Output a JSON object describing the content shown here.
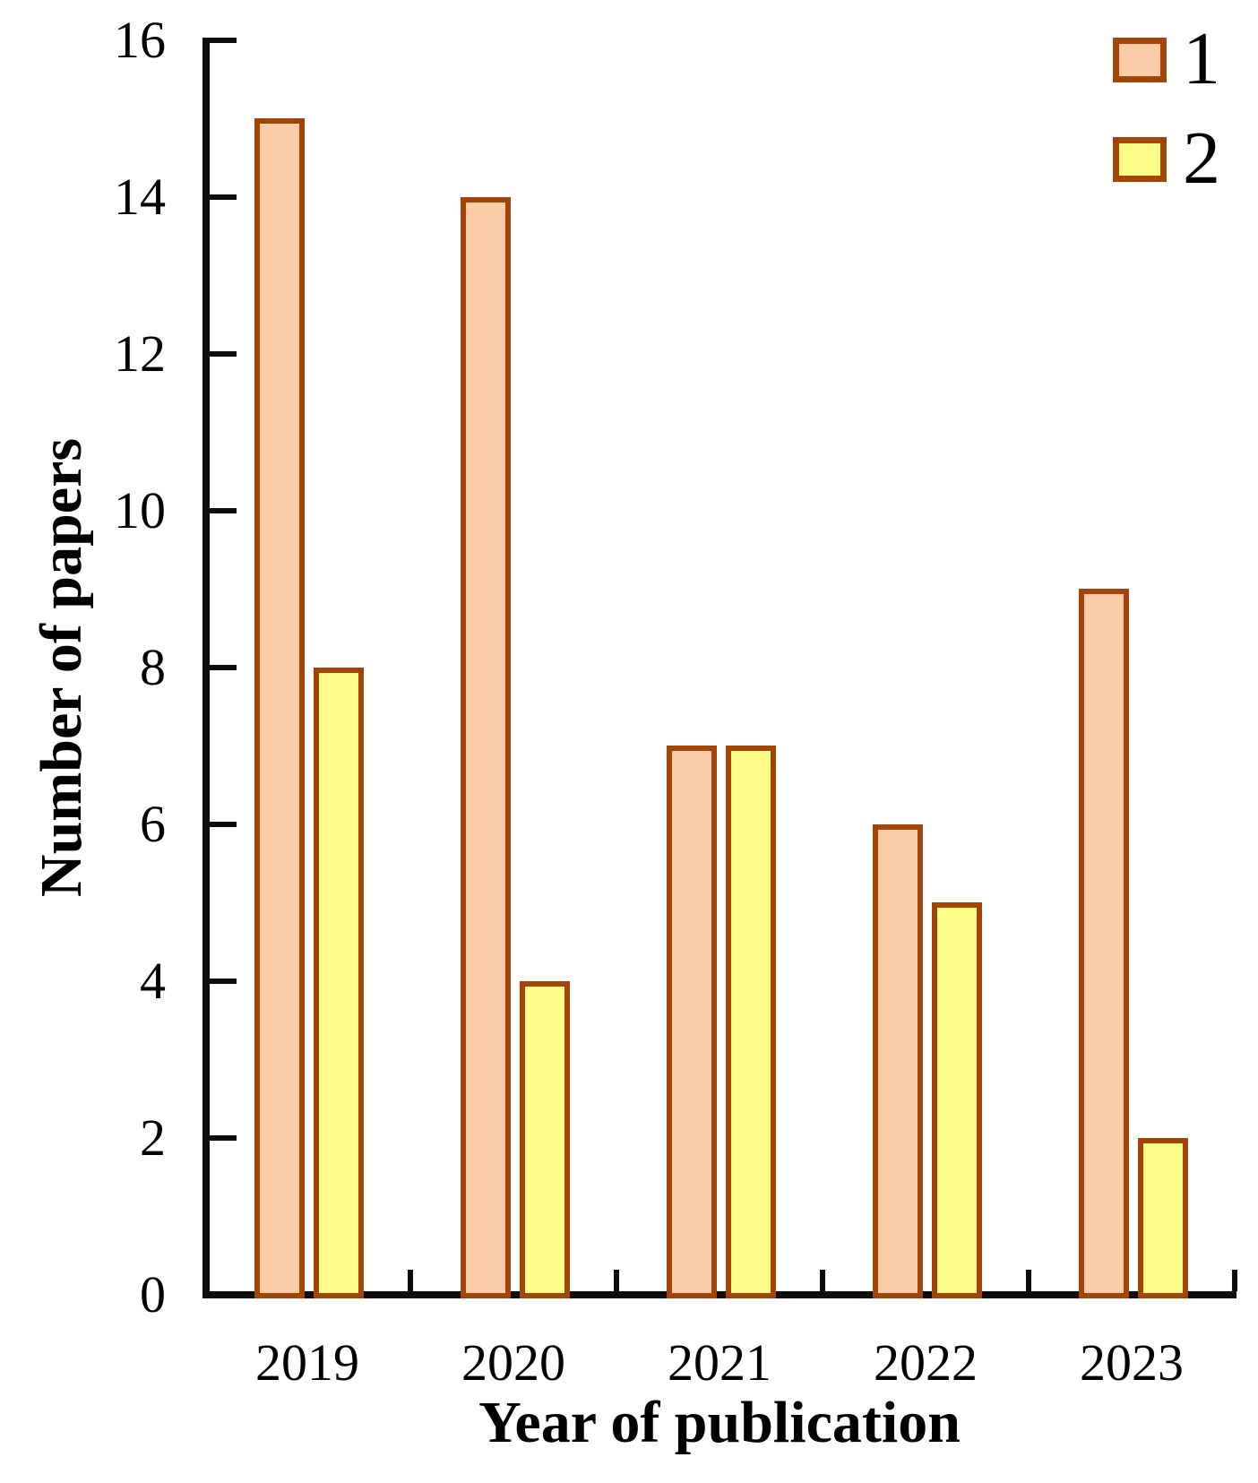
{
  "figure": {
    "background": "#ffffff",
    "axis_color": "#0d0d0d",
    "text_color": "#000000"
  },
  "chart_data": {
    "type": "bar",
    "title": "",
    "xlabel": "Year of publication",
    "ylabel": "Number of papers",
    "categories": [
      "2019",
      "2020",
      "2021",
      "2022",
      "2023"
    ],
    "series": [
      {
        "name": "1",
        "color": "#FCCCA8",
        "values": [
          15,
          14,
          7,
          6,
          9
        ]
      },
      {
        "name": "2",
        "color": "#FDFD87",
        "values": [
          8,
          4,
          7,
          5,
          2
        ]
      }
    ],
    "bar_border_color": "#A34408",
    "ylim": [
      0,
      16
    ],
    "yticks": [
      0,
      2,
      4,
      6,
      8,
      10,
      12,
      14,
      16
    ],
    "grid": false,
    "legend": {
      "position": "top-right"
    }
  }
}
